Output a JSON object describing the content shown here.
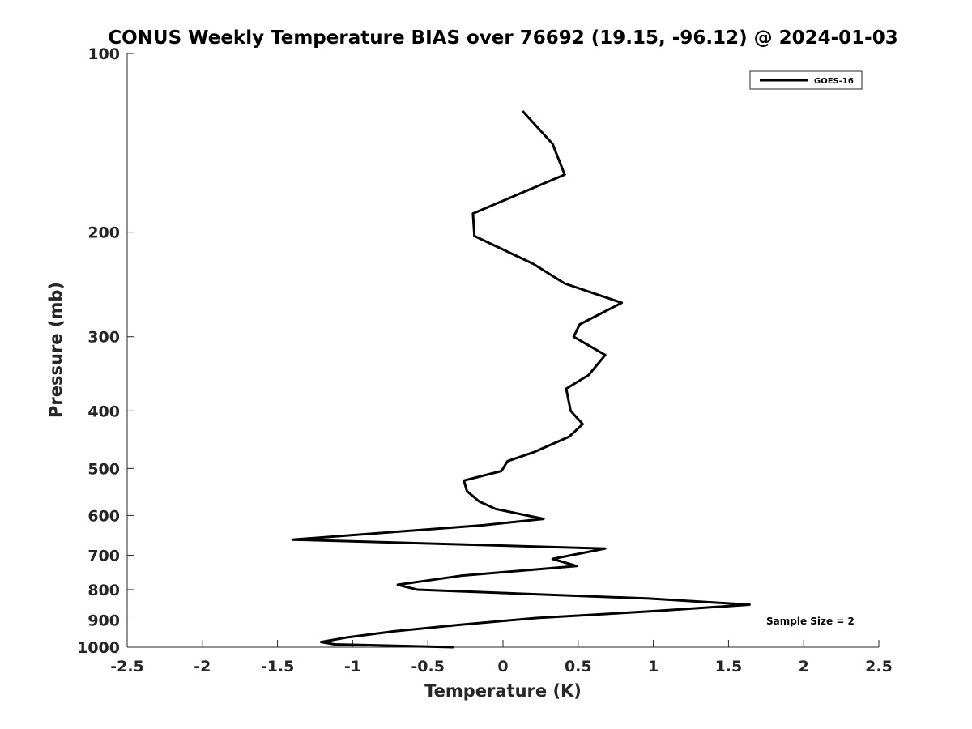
{
  "chart_data": {
    "type": "line",
    "title": "CONUS Weekly Temperature BIAS over 76692 (19.15, -96.12) @ 2024-01-03",
    "xlabel": "Temperature (K)",
    "ylabel": "Pressure (mb)",
    "xlim": [
      -2.5,
      2.5
    ],
    "ylim": [
      1000,
      100
    ],
    "y_scale": "log",
    "y_reversed": true,
    "x_ticks": [
      -2.5,
      -2,
      -1.5,
      -1,
      -0.5,
      0,
      0.5,
      1,
      1.5,
      2,
      2.5
    ],
    "x_tick_labels": [
      "-2.5",
      "-2",
      "-1.5",
      "-1",
      "-0.5",
      "0",
      "0.5",
      "1",
      "1.5",
      "2",
      "2.5"
    ],
    "y_ticks": [
      100,
      200,
      300,
      400,
      500,
      600,
      700,
      800,
      900,
      1000
    ],
    "y_tick_labels": [
      "100",
      "200",
      "300",
      "400",
      "500",
      "600",
      "700",
      "800",
      "900",
      "1000"
    ],
    "grid": false,
    "legend_position": "top-right",
    "series": [
      {
        "name": "GOES-16",
        "color": "#000000",
        "x": [
          0.13,
          0.33,
          0.41,
          -0.2,
          -0.19,
          0.2,
          0.41,
          0.79,
          0.51,
          0.47,
          0.68,
          0.57,
          0.42,
          0.45,
          0.53,
          0.44,
          0.2,
          0.03,
          -0.01,
          -0.26,
          -0.24,
          -0.16,
          -0.05,
          0.27,
          -0.13,
          -1.4,
          0.68,
          0.33,
          0.49,
          -0.28,
          -0.7,
          -0.57,
          0.97,
          1.64,
          1.02,
          0.22,
          -0.29,
          -0.72,
          -1.03,
          -1.21,
          -1.12,
          -0.33
        ],
        "y": [
          125,
          142,
          160,
          186,
          203,
          226,
          244,
          263,
          286,
          300,
          322,
          348,
          367,
          400,
          421,
          442,
          470,
          486,
          505,
          524,
          546,
          568,
          585,
          608,
          623,
          659,
          682,
          710,
          730,
          758,
          785,
          800,
          828,
          848,
          869,
          893,
          917,
          940,
          962,
          980,
          989,
          1000
        ]
      }
    ],
    "annotations": [
      "Sample Size = 2"
    ]
  }
}
